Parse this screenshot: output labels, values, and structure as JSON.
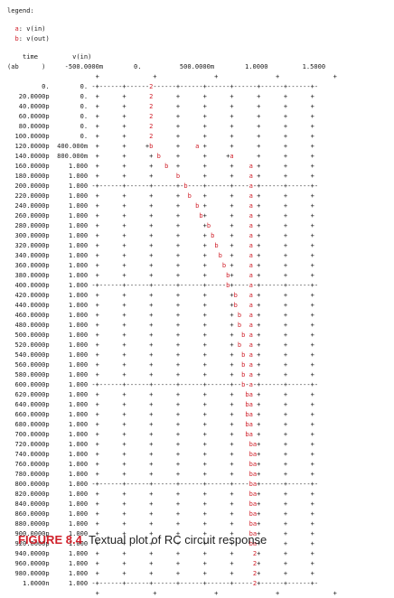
{
  "plot": {
    "legend_title": "legend:",
    "legend": [
      {
        "key": "a",
        "text": ": v(in)"
      },
      {
        "key": "b",
        "text": ": v(out)"
      }
    ],
    "header_1": "    time         v(in)",
    "header_2": "(ab      )     -500.0000m        0.          500.0000m        1.0000         1.5000",
    "top_ticks": "                       +              +               +               +              +",
    "bottom_ticks": "                       +              +               +               +              +",
    "rows": [
      {
        "time": "0.",
        "value": "0.",
        "line": "-+------+------2------+------+------+------+------+------+-"
      },
      {
        "time": "20.0000p",
        "value": "0.",
        "line": " +      +      2      +      +      +      +      +      + "
      },
      {
        "time": "40.0000p",
        "value": "0.",
        "line": " +      +      2      +      +      +      +      +      + "
      },
      {
        "time": "60.0000p",
        "value": "0.",
        "line": " +      +      2      +      +      +      +      +      + "
      },
      {
        "time": "80.0000p",
        "value": "0.",
        "line": " +      +      2      +      +      +      +      +      + "
      },
      {
        "time": "100.0000p",
        "value": "0.",
        "line": " +      +      2      +      +      +      +      +      + "
      },
      {
        "time": "120.0000p",
        "value": "400.000m",
        "line": " +      +     +b      +    a +      +      +      +      + "
      },
      {
        "time": "140.0000p",
        "value": "800.000m",
        "line": " +      +      + b    +      +     +a      +      +      + "
      },
      {
        "time": "160.0000p",
        "value": "1.000",
        "line": " +      +      +   b  +      +      +    a +      +      + "
      },
      {
        "time": "180.0000p",
        "value": "1.000",
        "line": " +      +      +      b      +      +    a +      +      + "
      },
      {
        "time": "200.0000p",
        "value": "1.000",
        "line": "-+------+------+------+-b----+------+----a-+------+------+-"
      },
      {
        "time": "220.0000p",
        "value": "1.000",
        "line": " +      +      +      +  b   +      +    a +      +      + "
      },
      {
        "time": "240.0000p",
        "value": "1.000",
        "line": " +      +      +      +    b +      +    a +      +      + "
      },
      {
        "time": "260.0000p",
        "value": "1.000",
        "line": " +      +      +      +     b+      +    a +      +      + "
      },
      {
        "time": "280.0000p",
        "value": "1.000",
        "line": " +      +      +      +      +b     +    a +      +      + "
      },
      {
        "time": "300.0000p",
        "value": "1.000",
        "line": " +      +      +      +      + b    +    a +      +      + "
      },
      {
        "time": "320.0000p",
        "value": "1.000",
        "line": " +      +      +      +      +  b   +    a +      +      + "
      },
      {
        "time": "340.0000p",
        "value": "1.000",
        "line": " +      +      +      +      +   b  +    a +      +      + "
      },
      {
        "time": "360.0000p",
        "value": "1.000",
        "line": " +      +      +      +      +    b +    a +      +      + "
      },
      {
        "time": "380.0000p",
        "value": "1.000",
        "line": " +      +      +      +      +     b+    a +      +      + "
      },
      {
        "time": "400.0000p",
        "value": "1.000",
        "line": "-+------+------+------+------+-----b+----a-+------+------+-"
      },
      {
        "time": "420.0000p",
        "value": "1.000",
        "line": " +      +      +      +      +      +b   a +      +      + "
      },
      {
        "time": "440.0000p",
        "value": "1.000",
        "line": " +      +      +      +      +      +b   a +      +      + "
      },
      {
        "time": "460.0000p",
        "value": "1.000",
        "line": " +      +      +      +      +      + b  a +      +      + "
      },
      {
        "time": "480.0000p",
        "value": "1.000",
        "line": " +      +      +      +      +      + b  a +      +      + "
      },
      {
        "time": "500.0000p",
        "value": "1.000",
        "line": " +      +      +      +      +      +  b a +      +      + "
      },
      {
        "time": "520.0000p",
        "value": "1.000",
        "line": " +      +      +      +      +      + b  a +      +      + "
      },
      {
        "time": "540.0000p",
        "value": "1.000",
        "line": " +      +      +      +      +      +  b a +      +      + "
      },
      {
        "time": "560.0000p",
        "value": "1.000",
        "line": " +      +      +      +      +      +  b a +      +      + "
      },
      {
        "time": "580.0000p",
        "value": "1.000",
        "line": " +      +      +      +      +      +  b a +      +      + "
      },
      {
        "time": "600.0000p",
        "value": "1.000",
        "line": "-+------+------+------+------+------+--b-a-+------+------+-"
      },
      {
        "time": "620.0000p",
        "value": "1.000",
        "line": " +      +      +      +      +      +   ba +      +      + "
      },
      {
        "time": "640.0000p",
        "value": "1.000",
        "line": " +      +      +      +      +      +   ba +      +      + "
      },
      {
        "time": "660.0000p",
        "value": "1.000",
        "line": " +      +      +      +      +      +   ba +      +      + "
      },
      {
        "time": "680.0000p",
        "value": "1.000",
        "line": " +      +      +      +      +      +   ba +      +      + "
      },
      {
        "time": "700.0000p",
        "value": "1.000",
        "line": " +      +      +      +      +      +   ba +      +      + "
      },
      {
        "time": "720.0000p",
        "value": "1.000",
        "line": " +      +      +      +      +      +    ba+      +      + "
      },
      {
        "time": "740.0000p",
        "value": "1.000",
        "line": " +      +      +      +      +      +    ba+      +      + "
      },
      {
        "time": "760.0000p",
        "value": "1.000",
        "line": " +      +      +      +      +      +    ba+      +      + "
      },
      {
        "time": "780.0000p",
        "value": "1.000",
        "line": " +      +      +      +      +      +    ba+      +      + "
      },
      {
        "time": "800.0000p",
        "value": "1.000",
        "line": "-+------+------+------+------+------+----ba+------+------+-"
      },
      {
        "time": "820.0000p",
        "value": "1.000",
        "line": " +      +      +      +      +      +    ba+      +      + "
      },
      {
        "time": "840.0000p",
        "value": "1.000",
        "line": " +      +      +      +      +      +    ba+      +      + "
      },
      {
        "time": "860.0000p",
        "value": "1.000",
        "line": " +      +      +      +      +      +    ba+      +      + "
      },
      {
        "time": "880.0000p",
        "value": "1.000",
        "line": " +      +      +      +      +      +    ba+      +      + "
      },
      {
        "time": "900.0000p",
        "value": "1.000",
        "line": " +      +      +      +      +      +    ba+      +      + "
      },
      {
        "time": "920.0000p",
        "value": "1.000",
        "line": " +      +      +      +      +      +    ba+      +      + "
      },
      {
        "time": "940.0000p",
        "value": "1.000",
        "line": " +      +      +      +      +      +     2+      +      + "
      },
      {
        "time": "960.0000p",
        "value": "1.000",
        "line": " +      +      +      +      +      +     2+      +      + "
      },
      {
        "time": "980.0000p",
        "value": "1.000",
        "line": " +      +      +      +      +      +     2+      +      + "
      },
      {
        "time": "1.0000n",
        "value": "1.000",
        "line": "-+------+------+------+------+------+-----2+------+------+-"
      }
    ]
  },
  "caption": {
    "label": "FIGURE 8.4",
    "text": "Textual plot of RC circuit response"
  }
}
